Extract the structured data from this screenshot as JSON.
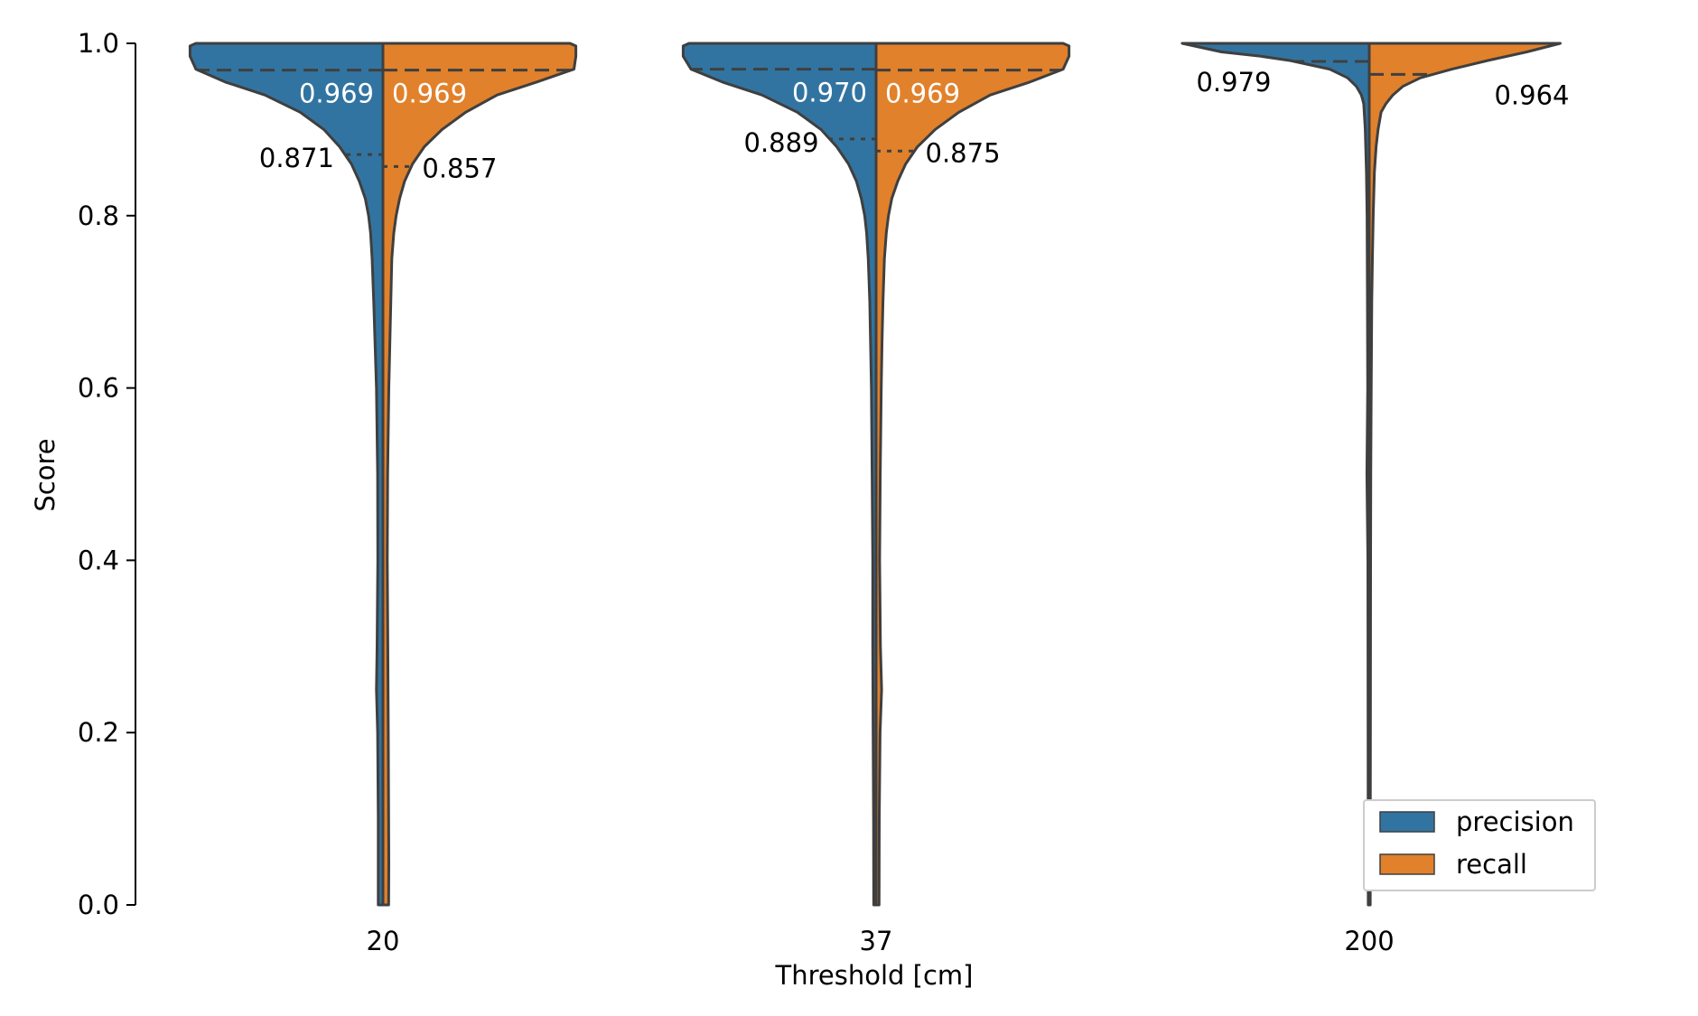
{
  "chart_data": {
    "type": "violin",
    "split": true,
    "title": "",
    "xlabel": "Threshold [cm]",
    "ylabel": "Score",
    "ylim": [
      0.0,
      1.0
    ],
    "yticks": [
      "0.0",
      "0.2",
      "0.4",
      "0.6",
      "0.8",
      "1.0"
    ],
    "categories": [
      "20",
      "37",
      "200"
    ],
    "colors": {
      "precision": "#3274a1",
      "recall": "#e1812c",
      "outline": "#3f3f3f"
    },
    "legend": {
      "position": "lower-right",
      "entries": [
        {
          "name": "precision",
          "color": "#3274a1"
        },
        {
          "name": "recall",
          "color": "#e1812c"
        }
      ]
    },
    "series": [
      {
        "name": "precision",
        "medians": [
          0.969,
          0.97,
          0.979
        ],
        "q1": [
          0.871,
          0.889,
          0.979
        ],
        "median_labels": [
          "0.969",
          "0.970",
          "0.979"
        ],
        "q1_labels": [
          "0.871",
          "0.889",
          ""
        ]
      },
      {
        "name": "recall",
        "medians": [
          0.969,
          0.969,
          0.964
        ],
        "q1": [
          0.857,
          0.875,
          0.964
        ],
        "median_labels": [
          "0.969",
          "0.969",
          "0.964"
        ],
        "q1_labels": [
          "0.857",
          "0.875",
          ""
        ]
      }
    ],
    "density_profiles": [
      {
        "category": "20",
        "y_range": [
          0.0,
          1.0
        ],
        "precision": [
          [
            1.0,
            0.95
          ],
          [
            0.997,
            0.98
          ],
          [
            0.985,
            0.98
          ],
          [
            0.97,
            0.95
          ],
          [
            0.955,
            0.8
          ],
          [
            0.94,
            0.6
          ],
          [
            0.92,
            0.42
          ],
          [
            0.9,
            0.3
          ],
          [
            0.88,
            0.22
          ],
          [
            0.86,
            0.16
          ],
          [
            0.84,
            0.12
          ],
          [
            0.82,
            0.09
          ],
          [
            0.8,
            0.073
          ],
          [
            0.78,
            0.063
          ],
          [
            0.75,
            0.055
          ],
          [
            0.7,
            0.047
          ],
          [
            0.65,
            0.04
          ],
          [
            0.6,
            0.033
          ],
          [
            0.5,
            0.027
          ],
          [
            0.4,
            0.026
          ],
          [
            0.3,
            0.03
          ],
          [
            0.25,
            0.033
          ],
          [
            0.2,
            0.027
          ],
          [
            0.1,
            0.024
          ],
          [
            0.0,
            0.024
          ]
        ],
        "recall": [
          [
            1.0,
            0.95
          ],
          [
            0.997,
            0.98
          ],
          [
            0.985,
            0.98
          ],
          [
            0.97,
            0.97
          ],
          [
            0.955,
            0.78
          ],
          [
            0.94,
            0.58
          ],
          [
            0.92,
            0.42
          ],
          [
            0.9,
            0.3
          ],
          [
            0.88,
            0.21
          ],
          [
            0.86,
            0.15
          ],
          [
            0.84,
            0.11
          ],
          [
            0.82,
            0.085
          ],
          [
            0.8,
            0.067
          ],
          [
            0.78,
            0.055
          ],
          [
            0.75,
            0.045
          ],
          [
            0.7,
            0.04
          ],
          [
            0.65,
            0.035
          ],
          [
            0.6,
            0.03
          ],
          [
            0.5,
            0.024
          ],
          [
            0.4,
            0.022
          ],
          [
            0.3,
            0.025
          ],
          [
            0.2,
            0.027
          ],
          [
            0.1,
            0.029
          ],
          [
            0.05,
            0.03
          ],
          [
            0.0,
            0.029
          ]
        ]
      },
      {
        "category": "37",
        "y_range": [
          0.0,
          1.0
        ],
        "precision": [
          [
            1.0,
            0.95
          ],
          [
            0.997,
            0.98
          ],
          [
            0.985,
            0.98
          ],
          [
            0.97,
            0.94
          ],
          [
            0.955,
            0.78
          ],
          [
            0.94,
            0.58
          ],
          [
            0.92,
            0.4
          ],
          [
            0.9,
            0.28
          ],
          [
            0.88,
            0.2
          ],
          [
            0.86,
            0.14
          ],
          [
            0.84,
            0.1
          ],
          [
            0.82,
            0.075
          ],
          [
            0.8,
            0.058
          ],
          [
            0.78,
            0.048
          ],
          [
            0.75,
            0.04
          ],
          [
            0.7,
            0.032
          ],
          [
            0.65,
            0.028
          ],
          [
            0.6,
            0.024
          ],
          [
            0.5,
            0.02
          ],
          [
            0.4,
            0.017
          ],
          [
            0.3,
            0.017
          ],
          [
            0.2,
            0.015
          ],
          [
            0.1,
            0.013
          ],
          [
            0.0,
            0.012
          ]
        ],
        "recall": [
          [
            1.0,
            0.95
          ],
          [
            0.997,
            0.98
          ],
          [
            0.985,
            0.98
          ],
          [
            0.97,
            0.95
          ],
          [
            0.955,
            0.78
          ],
          [
            0.94,
            0.58
          ],
          [
            0.92,
            0.42
          ],
          [
            0.9,
            0.3
          ],
          [
            0.88,
            0.21
          ],
          [
            0.86,
            0.15
          ],
          [
            0.84,
            0.11
          ],
          [
            0.82,
            0.08
          ],
          [
            0.8,
            0.063
          ],
          [
            0.78,
            0.052
          ],
          [
            0.75,
            0.042
          ],
          [
            0.7,
            0.035
          ],
          [
            0.65,
            0.03
          ],
          [
            0.6,
            0.026
          ],
          [
            0.5,
            0.021
          ],
          [
            0.4,
            0.018
          ],
          [
            0.3,
            0.022
          ],
          [
            0.25,
            0.028
          ],
          [
            0.2,
            0.02
          ],
          [
            0.1,
            0.016
          ],
          [
            0.0,
            0.015
          ]
        ]
      },
      {
        "category": "200",
        "y_range": [
          0.0,
          1.0
        ],
        "precision": [
          [
            1.0,
            0.95
          ],
          [
            0.99,
            0.75
          ],
          [
            0.985,
            0.55
          ],
          [
            0.98,
            0.4
          ],
          [
            0.97,
            0.2
          ],
          [
            0.96,
            0.11
          ],
          [
            0.95,
            0.065
          ],
          [
            0.94,
            0.04
          ],
          [
            0.93,
            0.028
          ],
          [
            0.9,
            0.02
          ],
          [
            0.85,
            0.014
          ],
          [
            0.8,
            0.011
          ],
          [
            0.7,
            0.009
          ],
          [
            0.6,
            0.008
          ],
          [
            0.5,
            0.012
          ],
          [
            0.4,
            0.007
          ],
          [
            0.2,
            0.006
          ],
          [
            0.0,
            0.005
          ]
        ],
        "recall": [
          [
            1.0,
            0.97
          ],
          [
            0.99,
            0.8
          ],
          [
            0.98,
            0.6
          ],
          [
            0.97,
            0.42
          ],
          [
            0.96,
            0.26
          ],
          [
            0.95,
            0.17
          ],
          [
            0.94,
            0.12
          ],
          [
            0.93,
            0.085
          ],
          [
            0.92,
            0.06
          ],
          [
            0.9,
            0.045
          ],
          [
            0.88,
            0.035
          ],
          [
            0.85,
            0.026
          ],
          [
            0.8,
            0.02
          ],
          [
            0.75,
            0.016
          ],
          [
            0.7,
            0.013
          ],
          [
            0.6,
            0.01
          ],
          [
            0.5,
            0.008
          ],
          [
            0.4,
            0.007
          ],
          [
            0.2,
            0.006
          ],
          [
            0.0,
            0.005
          ]
        ]
      }
    ]
  }
}
